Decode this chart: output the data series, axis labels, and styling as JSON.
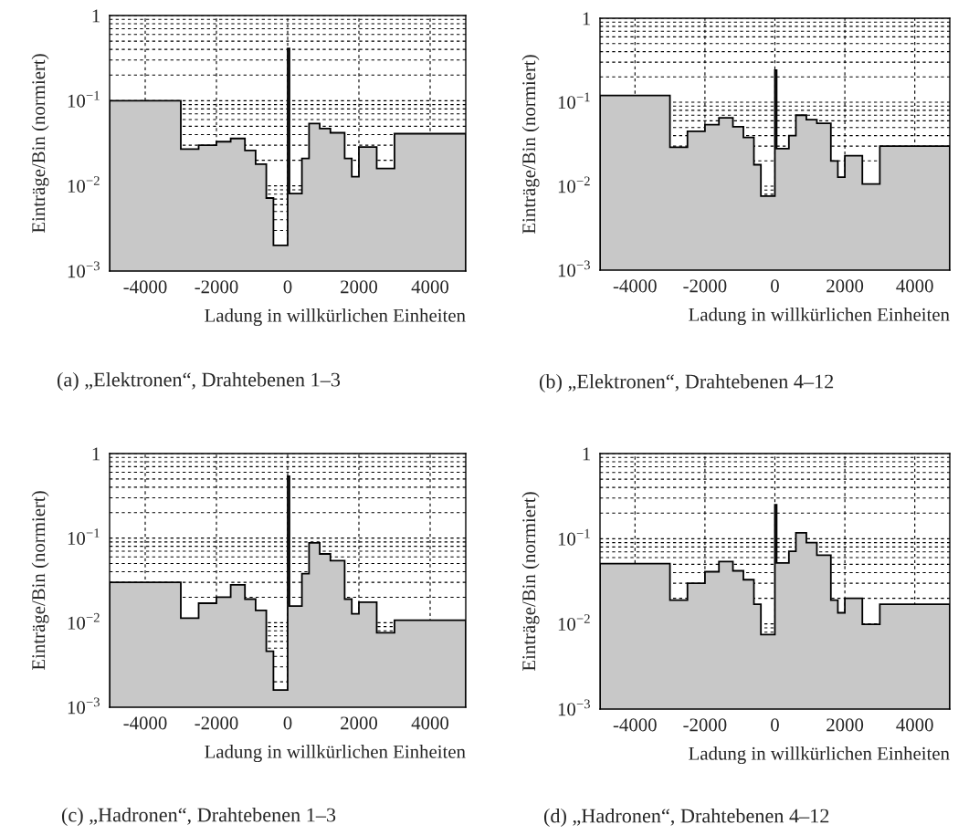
{
  "chart_data": [
    {
      "type": "histogram",
      "title": "(a) „Elektronen“, Drahtebenen 1–3",
      "xlabel": "Ladung in willkürlichen Einheiten",
      "ylabel": "Einträge/Bin (normiert)",
      "log": true,
      "grid": true,
      "color": "#c8c8c8",
      "bins": [
        -5000,
        -3000,
        -2500,
        -2000,
        -1600,
        -1200,
        -900,
        -600,
        -400,
        0,
        50,
        400,
        600,
        900,
        1200,
        1600,
        1800,
        2000,
        2500,
        3000,
        5000
      ],
      "values": [
        0.1,
        0.027,
        0.03,
        0.033,
        0.036,
        0.026,
        0.018,
        0.0072,
        0.002,
        0.41,
        0.0081,
        0.021,
        0.054,
        0.047,
        0.042,
        0.021,
        0.0128,
        0.0285,
        0.016,
        0.041
      ],
      "xlim": [
        -5000,
        5000
      ],
      "xticks": [
        -4000,
        -2000,
        0,
        2000,
        4000
      ],
      "ylim": [
        0.001,
        1
      ],
      "yticks": [
        {
          "value": 0.001,
          "label": "10$^{−3}$"
        },
        {
          "value": 0.01,
          "label": "10$^{−2}$"
        },
        {
          "value": 0.1,
          "label": "10$^{−1}$"
        },
        1
      ]
    },
    {
      "type": "histogram",
      "title": "(b) „Elektronen“, Drahtebenen 4–12",
      "xlabel": "Ladung in willkürlichen Einheiten",
      "ylabel": "Einträge/Bin (normiert)",
      "log": true,
      "grid": true,
      "color": "#c8c8c8",
      "bins": [
        -5000,
        -3000,
        -2500,
        -2000,
        -1600,
        -1200,
        -900,
        -600,
        -400,
        0,
        50,
        400,
        600,
        900,
        1200,
        1600,
        1800,
        2000,
        2500,
        3000,
        5000
      ],
      "values": [
        0.12,
        0.029,
        0.045,
        0.054,
        0.065,
        0.051,
        0.038,
        0.018,
        0.0076,
        0.24,
        0.028,
        0.04,
        0.07,
        0.062,
        0.056,
        0.02,
        0.0128,
        0.023,
        0.0106,
        0.03
      ],
      "xlim": [
        -5000,
        5000
      ],
      "xticks": [
        -4000,
        -2000,
        0,
        2000,
        4000
      ],
      "ylim": [
        0.001,
        1
      ],
      "yticks": [
        {
          "value": 0.001,
          "label": "10$^{−3}$"
        },
        {
          "value": 0.01,
          "label": "10$^{−2}$"
        },
        {
          "value": 0.1,
          "label": "10$^{−1}$"
        },
        1
      ]
    },
    {
      "type": "histogram",
      "title": "(c) „Hadronen“, Drahtebenen 1–3",
      "xlabel": "Ladung in willkürlichen Einheiten",
      "ylabel": "Einträge/Bin (normiert)",
      "log": true,
      "grid": true,
      "color": "#c8c8c8",
      "bins": [
        -5000,
        -3000,
        -2500,
        -2000,
        -1600,
        -1200,
        -900,
        -600,
        -400,
        0,
        50,
        400,
        600,
        900,
        1200,
        1600,
        1800,
        2000,
        2500,
        3000,
        5000
      ],
      "values": [
        0.03,
        0.0113,
        0.017,
        0.02,
        0.028,
        0.019,
        0.014,
        0.0046,
        0.0016,
        0.54,
        0.0157,
        0.038,
        0.088,
        0.065,
        0.054,
        0.019,
        0.0127,
        0.0175,
        0.0076,
        0.0107
      ],
      "xlim": [
        -5000,
        5000
      ],
      "xticks": [
        -4000,
        -2000,
        0,
        2000,
        4000
      ],
      "ylim": [
        0.001,
        1
      ],
      "yticks": [
        {
          "value": 0.001,
          "label": "10$^{−3}$"
        },
        {
          "value": 0.01,
          "label": "10$^{−2}$"
        },
        {
          "value": 0.1,
          "label": "10$^{−1}$"
        },
        1
      ]
    },
    {
      "type": "histogram",
      "title": "(d) „Hadronen“, Drahtebenen 4–12",
      "xlabel": "Ladung in willkürlichen Einheiten",
      "ylabel": "Einträge/Bin (normiert)",
      "log": true,
      "grid": true,
      "color": "#c8c8c8",
      "bins": [
        -5000,
        -3000,
        -2500,
        -2000,
        -1600,
        -1200,
        -900,
        -600,
        -400,
        0,
        50,
        400,
        600,
        900,
        1200,
        1600,
        1800,
        2000,
        2500,
        3000,
        5000
      ],
      "values": [
        0.051,
        0.019,
        0.03,
        0.041,
        0.054,
        0.042,
        0.033,
        0.017,
        0.0075,
        0.25,
        0.052,
        0.071,
        0.117,
        0.09,
        0.064,
        0.019,
        0.0135,
        0.02,
        0.0099,
        0.017
      ],
      "xlim": [
        -5000,
        5000
      ],
      "xticks": [
        -4000,
        -2000,
        0,
        2000,
        4000
      ],
      "ylim": [
        0.001,
        1
      ],
      "yticks": [
        {
          "value": 0.001,
          "label": "10$^{−3}$"
        },
        {
          "value": 0.01,
          "label": "10$^{−2}$"
        },
        {
          "value": 0.1,
          "label": "10$^{−1}$"
        },
        1
      ]
    }
  ]
}
